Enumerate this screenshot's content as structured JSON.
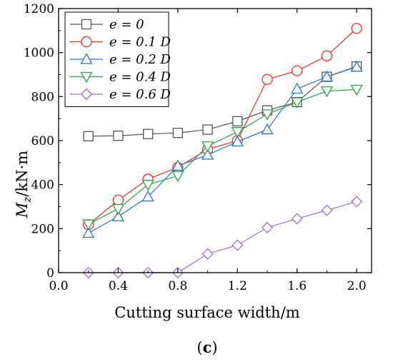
{
  "chart_data": {
    "type": "line",
    "x": [
      0.2,
      0.4,
      0.6,
      0.8,
      1.0,
      1.2,
      1.4,
      1.6,
      1.8,
      2.0
    ],
    "xlabel": "Cutting surface width/m",
    "ylabel_main": "M",
    "ylabel_sub": "z",
    "ylabel_unit": "/kN·m",
    "xlim": [
      0.0,
      2.1
    ],
    "ylim": [
      0,
      1200
    ],
    "xticks": [
      "0.0",
      "0.4",
      "0.8",
      "1.2",
      "1.6",
      "2.0"
    ],
    "xtick_values": [
      0.0,
      0.4,
      0.8,
      1.2,
      1.6,
      2.0
    ],
    "yticks": [
      "0",
      "200",
      "400",
      "600",
      "800",
      "1000",
      "1200"
    ],
    "ytick_values": [
      0,
      200,
      400,
      600,
      800,
      1000,
      1200
    ],
    "grid": false,
    "legend_position": "top-left",
    "series": [
      {
        "name": "e = 0",
        "color": "#555555",
        "marker": "square",
        "values": [
          620,
          622,
          630,
          635,
          650,
          688,
          737,
          775,
          890,
          937
        ]
      },
      {
        "name": "e = 0.1 D",
        "color": "#e8302a",
        "marker": "circle",
        "values": [
          218,
          330,
          425,
          478,
          560,
          600,
          878,
          917,
          985,
          1110
        ]
      },
      {
        "name": "e = 0.2 D",
        "color": "#2a73c6",
        "marker": "triangle-up",
        "values": [
          180,
          255,
          345,
          485,
          535,
          595,
          650,
          835,
          890,
          935
        ]
      },
      {
        "name": "e = 0.4 D",
        "color": "#2e9e4a",
        "marker": "triangle-down",
        "values": [
          220,
          290,
          400,
          440,
          575,
          640,
          720,
          775,
          825,
          832
        ]
      },
      {
        "name": "e = 0.6 D",
        "color": "#9b6fd0",
        "marker": "diamond",
        "values": [
          0,
          0,
          0,
          0,
          85,
          125,
          205,
          245,
          283,
          323
        ]
      }
    ]
  },
  "caption": {
    "open": "(",
    "letter": "c",
    "close": ")"
  }
}
